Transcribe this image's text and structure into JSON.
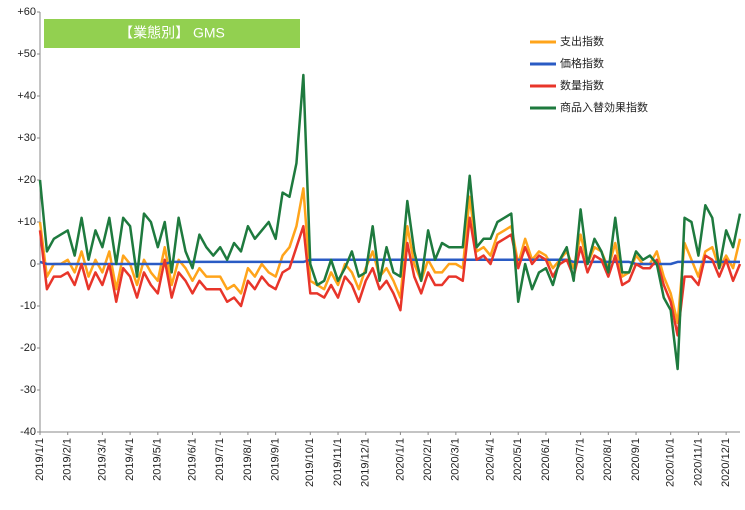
{
  "chart_data": {
    "type": "line",
    "title": "【業態別】 GMS",
    "categories": [
      "2019/1/1",
      null,
      null,
      null,
      "2019/2/1",
      null,
      null,
      null,
      null,
      "2019/3/1",
      null,
      null,
      null,
      "2019/4/1",
      null,
      null,
      null,
      "2019/5/1",
      null,
      null,
      null,
      null,
      "2019/6/1",
      null,
      null,
      null,
      "2019/7/1",
      null,
      null,
      null,
      "2019/8/1",
      null,
      null,
      null,
      "2019/9/1",
      null,
      null,
      null,
      null,
      "2019/10/1",
      null,
      null,
      null,
      "2019/11/1",
      null,
      null,
      null,
      "2019/12/1",
      null,
      null,
      null,
      null,
      "2020/1/1",
      null,
      null,
      null,
      "2020/2/1",
      null,
      null,
      null,
      "2020/3/1",
      null,
      null,
      null,
      null,
      "2020/4/1",
      null,
      null,
      null,
      "2020/5/1",
      null,
      null,
      null,
      "2020/6/1",
      null,
      null,
      null,
      null,
      "2020/7/1",
      null,
      null,
      null,
      "2020/8/1",
      null,
      null,
      null,
      "2020/9/1",
      null,
      null,
      null,
      null,
      "2020/10/1",
      null,
      null,
      null,
      "2020/11/1",
      null,
      null,
      null,
      "2020/12/1",
      null,
      null
    ],
    "series": [
      {
        "name": "支出指数",
        "color": "#ffa41b",
        "values": [
          10,
          -3,
          0,
          0,
          1,
          -2,
          3,
          -3,
          1,
          -2,
          3,
          -6,
          2,
          0,
          -5,
          1,
          -2,
          -4,
          4,
          -5,
          1,
          -1,
          -4,
          -1,
          -3,
          -3,
          -3,
          -6,
          -5,
          -7,
          -1,
          -3,
          0,
          -2,
          -3,
          2,
          4,
          9,
          18,
          -4,
          -5,
          -6,
          -2,
          -5,
          0,
          -2,
          -6,
          -1,
          3,
          -3,
          -1,
          -4,
          -8,
          9,
          0,
          -4,
          1,
          -2,
          -2,
          0,
          0,
          -1,
          16,
          3,
          4,
          2,
          7,
          8,
          9,
          0,
          6,
          1,
          3,
          2,
          -1,
          1,
          3,
          -1,
          7,
          0,
          4,
          3,
          -1,
          5,
          -3,
          -2,
          2,
          0,
          0,
          3,
          -3,
          -7,
          -14,
          5,
          1,
          -3,
          3,
          4,
          -1,
          2,
          -1,
          6
        ]
      },
      {
        "name": "価格指数",
        "color": "#2a5bc4",
        "values": [
          0.5,
          0,
          0,
          0,
          0,
          0,
          0,
          0,
          0,
          0,
          0,
          0,
          0,
          0,
          0,
          0,
          0,
          0,
          0,
          0.5,
          0.5,
          0.5,
          0.5,
          0.5,
          0.5,
          0.5,
          0.5,
          0.5,
          0.5,
          0.5,
          0.5,
          0.5,
          0.5,
          0.5,
          0.5,
          0.5,
          0.5,
          0.5,
          0.5,
          1,
          1,
          1,
          1,
          1,
          1,
          1,
          1,
          1,
          1,
          1,
          1,
          1,
          1,
          1,
          1,
          1,
          1,
          1,
          1,
          1,
          1,
          1,
          1,
          1,
          1,
          1,
          1,
          1,
          1,
          1,
          1,
          1,
          1,
          1,
          1,
          1,
          1,
          0.5,
          0.5,
          0.5,
          0.5,
          0.5,
          0.5,
          0.5,
          0.5,
          0.5,
          0,
          0,
          0,
          0,
          0,
          0,
          0.5,
          0.5,
          0.5,
          0.5,
          0.5,
          0.5,
          0.5,
          0.5,
          0.5,
          0.5
        ]
      },
      {
        "name": "数量指数",
        "color": "#e8352a",
        "values": [
          8,
          -6,
          -3,
          -3,
          -2,
          -5,
          0,
          -6,
          -2,
          -5,
          0,
          -9,
          -1,
          -3,
          -8,
          -2,
          -5,
          -7,
          1,
          -8,
          -2,
          -4,
          -7,
          -4,
          -6,
          -6,
          -6,
          -9,
          -8,
          -10,
          -4,
          -6,
          -3,
          -5,
          -6,
          -2,
          -1,
          4,
          9,
          -7,
          -7,
          -8,
          -5,
          -8,
          -3,
          -5,
          -9,
          -4,
          -1,
          -6,
          -4,
          -7,
          -11,
          5,
          -3,
          -7,
          -2,
          -5,
          -5,
          -3,
          -3,
          -4,
          11,
          1,
          2,
          0,
          5,
          6,
          7,
          -1,
          4,
          0,
          2,
          1,
          -3,
          0,
          1,
          -3,
          4,
          -2,
          2,
          1,
          -3,
          2,
          -5,
          -4,
          0,
          -1,
          -1,
          1,
          -5,
          -9,
          -17,
          -3,
          -3,
          -5,
          2,
          1,
          -3,
          1,
          -4,
          0
        ]
      },
      {
        "name": "商品入替効果指数",
        "color": "#1e7a3e",
        "values": [
          20,
          3,
          6,
          7,
          8,
          2,
          11,
          1,
          8,
          4,
          11,
          0,
          11,
          9,
          -3,
          12,
          10,
          4,
          10,
          -2,
          11,
          3,
          -1,
          7,
          4,
          2,
          4,
          1,
          5,
          3,
          9,
          6,
          8,
          10,
          6,
          17,
          16,
          24,
          45,
          0,
          -5,
          -4,
          1,
          -4,
          -1,
          3,
          -3,
          -2,
          9,
          -4,
          4,
          -2,
          -3,
          15,
          3,
          -4,
          8,
          1,
          5,
          4,
          4,
          4,
          21,
          4,
          6,
          6,
          10,
          11,
          12,
          -9,
          0,
          -6,
          -2,
          -1,
          -5,
          1,
          4,
          -4,
          13,
          0,
          6,
          3,
          -2,
          11,
          -2,
          -2,
          3,
          1,
          2,
          0,
          -8,
          -11,
          -25,
          11,
          10,
          2,
          14,
          11,
          -1,
          8,
          4,
          12
        ]
      }
    ],
    "ylim": [
      -40,
      60
    ],
    "yticks": [
      {
        "value": 60,
        "label": "+60"
      },
      {
        "value": 50,
        "label": "+50"
      },
      {
        "value": 40,
        "label": "+40"
      },
      {
        "value": 30,
        "label": "+30"
      },
      {
        "value": 20,
        "label": "+20"
      },
      {
        "value": 10,
        "label": "+10"
      },
      0,
      -10,
      -20,
      -30,
      -40
    ],
    "grid": false,
    "legend": "upper right"
  }
}
